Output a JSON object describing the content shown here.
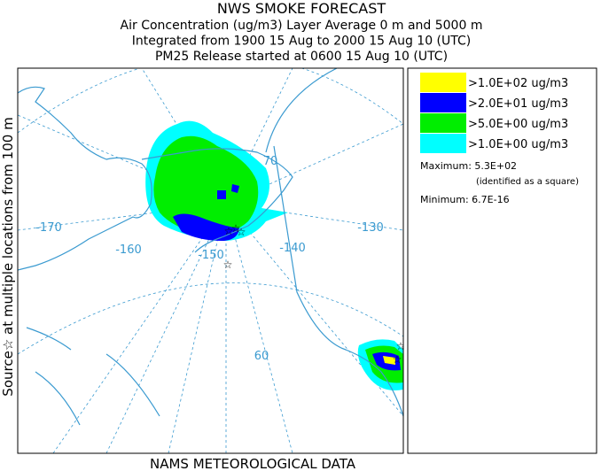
{
  "header": {
    "title": "NWS SMOKE FORECAST",
    "lines": [
      "Air Concentration (ug/m3) Layer Average    0 m and  5000 m",
      "Integrated from 1900 15 Aug to 2000 15 Aug 10 (UTC)",
      "PM25 Release started at 0600 15 Aug 10 (UTC)"
    ]
  },
  "side_label": "Source☆ at multiple locations from  100 m",
  "footer": "NAMS METEOROLOGICAL DATA",
  "legend": {
    "entries": [
      {
        "label": ">1.0E+02 ug/m3",
        "color": "#ffff00"
      },
      {
        "label": ">2.0E+01 ug/m3",
        "color": "#0000ff"
      },
      {
        "label": ">5.0E+00 ug/m3",
        "color": "#00ee00"
      },
      {
        "label": ">1.0E+00 ug/m3",
        "color": "#00ffff"
      }
    ],
    "maximum": "Maximum: 5.3E+02",
    "maximum_note": "(identified as a square)",
    "minimum": "Minimum: 6.7E-16"
  },
  "map": {
    "labels": [
      "-170",
      "-160",
      "-150",
      "-140",
      "-130",
      "70",
      "60"
    ]
  }
}
